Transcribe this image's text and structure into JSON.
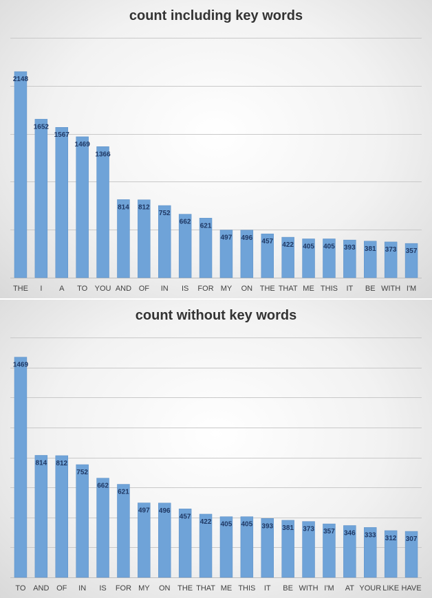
{
  "chart_data": [
    {
      "type": "bar",
      "title": "count including key words",
      "categories": [
        "THE",
        "I",
        "A",
        "TO",
        "YOU",
        "AND",
        "OF",
        "IN",
        "IS",
        "FOR",
        "MY",
        "ON",
        "THE",
        "THAT",
        "ME",
        "THIS",
        "IT",
        "BE",
        "WITH",
        "I'M"
      ],
      "values": [
        2148,
        1652,
        1567,
        1469,
        1366,
        814,
        812,
        752,
        662,
        621,
        497,
        496,
        457,
        422,
        405,
        405,
        393,
        381,
        373,
        357
      ],
      "ylim": [
        0,
        2500
      ],
      "grid": true,
      "colors": {
        "bar": "#6fa3d8",
        "label": "#1f3864"
      }
    },
    {
      "type": "bar",
      "title": "count without key words",
      "categories": [
        "TO",
        "AND",
        "OF",
        "IN",
        "IS",
        "FOR",
        "MY",
        "ON",
        "THE",
        "THAT",
        "ME",
        "THIS",
        "IT",
        "BE",
        "WITH",
        "I'M",
        "AT",
        "YOUR",
        "LIKE",
        "HAVE"
      ],
      "values": [
        1469,
        814,
        812,
        752,
        662,
        621,
        497,
        496,
        457,
        422,
        405,
        405,
        393,
        381,
        373,
        357,
        346,
        333,
        312,
        307
      ],
      "ylim": [
        0,
        1600
      ],
      "grid": true,
      "colors": {
        "bar": "#6fa3d8",
        "label": "#1f3864"
      }
    }
  ]
}
